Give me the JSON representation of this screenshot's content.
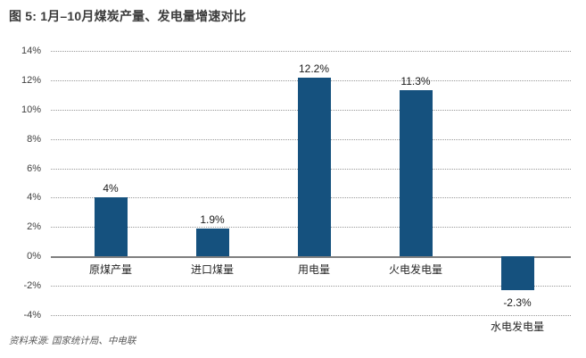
{
  "title": "图 5: 1月–10月煤炭产量、发电量增速对比",
  "source": "资料来源: 国家统计局、中电联",
  "chart_data": {
    "type": "bar",
    "title": "图 5: 1月–10月煤炭产量、发电量增速对比",
    "categories": [
      "原煤产量",
      "进口煤量",
      "用电量",
      "火电发电量",
      "水电发电量"
    ],
    "values": [
      4,
      1.9,
      12.2,
      11.3,
      -2.3
    ],
    "value_labels": [
      "4%",
      "1.9%",
      "12.2%",
      "11.3%",
      "-2.3%"
    ],
    "xlabel": "",
    "ylabel": "",
    "ylim": [
      -4,
      14
    ],
    "ytick_step": 2,
    "ytick_labels": [
      "14%",
      "12%",
      "10%",
      "8%",
      "6%",
      "4%",
      "2%",
      "0%",
      "-2%",
      "-4%"
    ],
    "grid": "horizontal-dotted",
    "legend": "none",
    "source": "资料来源: 国家统计局、中电联"
  },
  "colors": {
    "bar": "#15517e",
    "title_text": "#3b3b3b",
    "gridline": "#999999",
    "zero_line": "#7f7f7f",
    "tick_text": "#404040",
    "label_text": "#1a1a1a",
    "source_text": "#595959",
    "background": "#ffffff"
  }
}
